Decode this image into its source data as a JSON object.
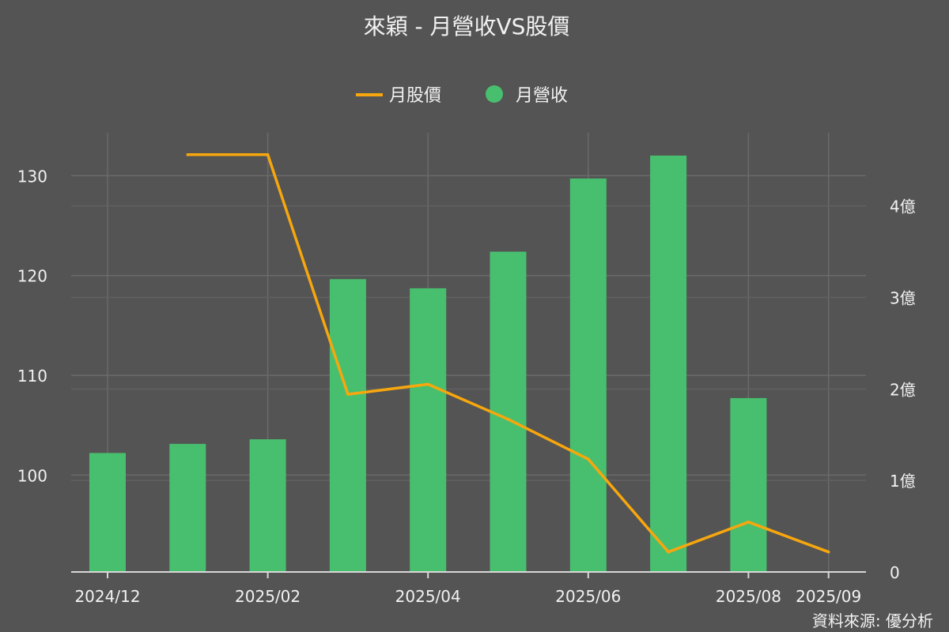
{
  "chart_data": {
    "type": "bar+line",
    "title": "來穎 - 月營收VS股價",
    "source": "資料來源: 優分析",
    "categories": [
      "2024/12",
      "2025/01",
      "2025/02",
      "2025/03",
      "2025/04",
      "2025/05",
      "2025/06",
      "2025/07",
      "2025/08",
      "2025/09"
    ],
    "x_tick_labels": [
      "2024/12",
      "",
      "2025/02",
      "",
      "2025/04",
      "",
      "2025/06",
      "",
      "2025/08",
      "2025/09"
    ],
    "series": [
      {
        "name": "月股價",
        "type": "line",
        "axis": "left",
        "color": "#f7a70d",
        "values": [
          null,
          132.1,
          132.1,
          108.1,
          109.1,
          105.6,
          101.6,
          92.3,
          95.3,
          92.3
        ]
      },
      {
        "name": "月營收",
        "type": "bar",
        "axis": "right",
        "color": "#48bf6e",
        "values": [
          1.3,
          1.4,
          1.45,
          3.2,
          3.1,
          3.5,
          4.3,
          4.55,
          1.9,
          null
        ]
      }
    ],
    "y_left": {
      "ticks": [
        100,
        110,
        120,
        130
      ],
      "ylim": [
        90.3,
        134.3
      ]
    },
    "y_right": {
      "ticks": [
        0,
        1,
        2,
        3,
        4
      ],
      "tick_labels": [
        "0",
        "1億",
        "2億",
        "3億",
        "4億"
      ],
      "ylim": [
        0,
        4.8
      ]
    },
    "legend": {
      "position": "top-center",
      "items": [
        "月股價",
        "月營收"
      ]
    },
    "grid": true
  }
}
